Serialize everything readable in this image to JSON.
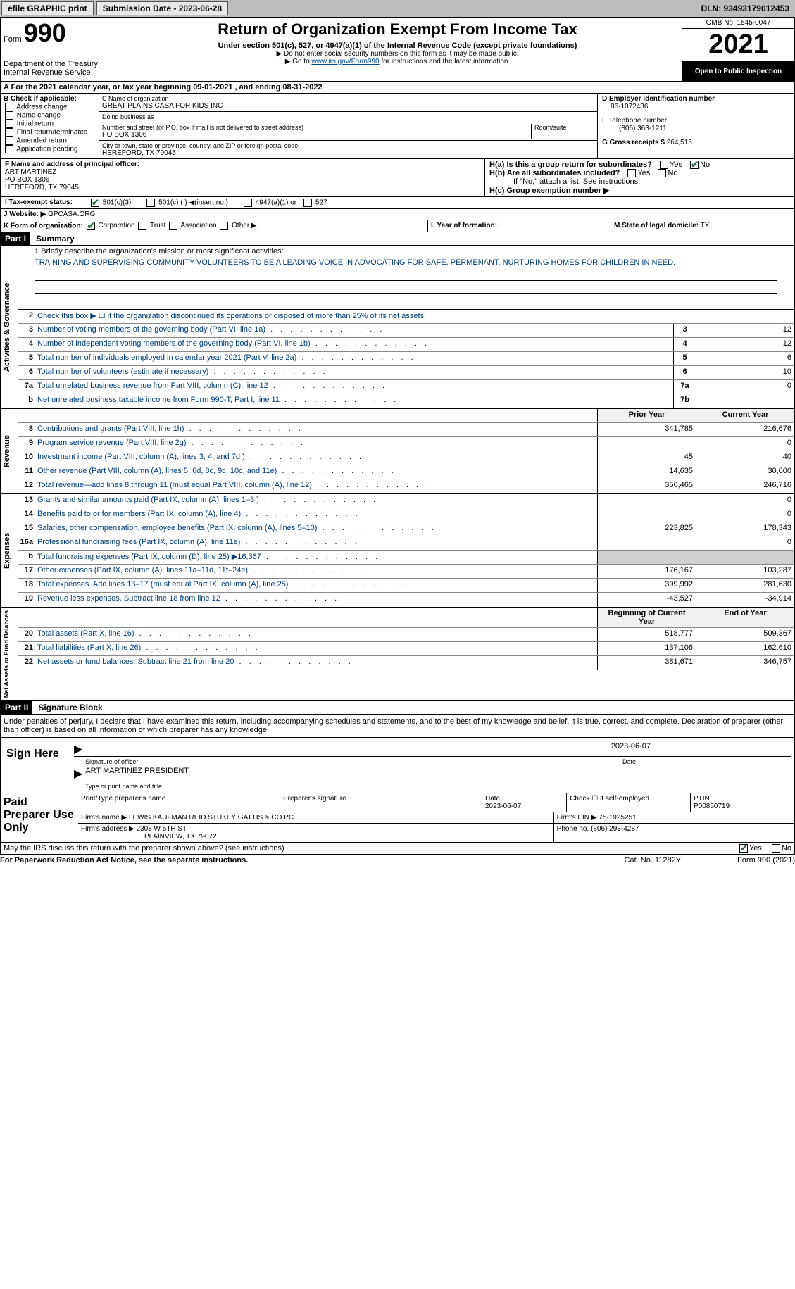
{
  "topbar": {
    "efile": "efile GRAPHIC print",
    "sub_label": "Submission Date - 2023-06-28",
    "dln": "DLN: 93493179012453"
  },
  "header": {
    "form": "Form",
    "num": "990",
    "title": "Return of Organization Exempt From Income Tax",
    "sub1": "Under section 501(c), 527, or 4947(a)(1) of the Internal Revenue Code (except private foundations)",
    "sub2": "▶ Do not enter social security numbers on this form as it may be made public.",
    "sub3_a": "▶ Go to ",
    "sub3_link": "www.irs.gov/Form990",
    "sub3_b": " for instructions and the latest information.",
    "dept": "Department of the Treasury",
    "irs": "Internal Revenue Service",
    "omb": "OMB No. 1545-0047",
    "year": "2021",
    "pub": "Open to Public Inspection"
  },
  "sectionA": "A For the 2021 calendar year, or tax year beginning 09-01-2021   , and ending 08-31-2022",
  "B": {
    "lbl": "B Check if applicable:",
    "opts": [
      "Address change",
      "Name change",
      "Initial return",
      "Final return/terminated",
      "Amended return",
      "Application pending"
    ]
  },
  "C": {
    "name_lbl": "C Name of organization",
    "name": "GREAT PLAINS CASA FOR KIDS INC",
    "dba_lbl": "Doing business as",
    "dba": "",
    "addr_lbl": "Number and street (or P.O. box if mail is not delivered to street address)",
    "room_lbl": "Room/suite",
    "addr": "PO BOX 1306",
    "city_lbl": "City or town, state or province, country, and ZIP or foreign postal code",
    "city": "HEREFORD, TX  79045"
  },
  "D": {
    "lbl": "D Employer identification number",
    "val": "86-1072436"
  },
  "E": {
    "lbl": "E Telephone number",
    "val": "(806) 363-1211"
  },
  "G": {
    "lbl": "G Gross receipts $",
    "val": "264,515"
  },
  "F": {
    "lbl": "F  Name and address of principal officer:",
    "name": "ART MARTINEZ",
    "addr1": "PO BOX 1306",
    "addr2": "HEREFORD, TX  79045"
  },
  "H": {
    "a": "H(a)  Is this a group return for subordinates?",
    "b": "H(b)  Are all subordinates included?",
    "b_note": "If \"No,\" attach a list. See instructions.",
    "c": "H(c)  Group exemption number ▶",
    "yes": "Yes",
    "no": "No"
  },
  "I": {
    "lbl": "I  Tax-exempt status:",
    "opt1": "501(c)(3)",
    "opt2": "501(c) (  ) ◀(insert no.)",
    "opt3": "4947(a)(1) or",
    "opt4": "527"
  },
  "J": {
    "lbl": "J  Website: ▶",
    "val": "GPCASA.ORG"
  },
  "K": {
    "lbl": "K Form of organization:",
    "corp": "Corporation",
    "trust": "Trust",
    "assoc": "Association",
    "other": "Other ▶"
  },
  "L": {
    "lbl": "L Year of formation:",
    "val": ""
  },
  "M": {
    "lbl": "M State of legal domicile:",
    "val": "TX"
  },
  "part1": {
    "head": "Part I",
    "title": "Summary"
  },
  "brief": {
    "n": "1",
    "lbl": "Briefly describe the organization's mission or most significant activities:",
    "txt": "TRAINING AND SUPERVISING COMMUNITY VOLUNTEERS TO BE A LEADING VOICE IN ADVOCATING FOR SAFE, PERMENANT, NURTURING HOMES FOR CHILDREN IN NEED."
  },
  "line2": {
    "n": "2",
    "txt": "Check this box ▶ ☐  if the organization discontinued its operations or disposed of more than 25% of its net assets."
  },
  "govlines": [
    {
      "n": "3",
      "d": "Number of voting members of the governing body (Part VI, line 1a)",
      "nb": "3",
      "v": "12"
    },
    {
      "n": "4",
      "d": "Number of independent voting members of the governing body (Part VI, line 1b)",
      "nb": "4",
      "v": "12"
    },
    {
      "n": "5",
      "d": "Total number of individuals employed in calendar year 2021 (Part V, line 2a)",
      "nb": "5",
      "v": "6"
    },
    {
      "n": "6",
      "d": "Total number of volunteers (estimate if necessary)",
      "nb": "6",
      "v": "10"
    },
    {
      "n": "7a",
      "d": "Total unrelated business revenue from Part VIII, column (C), line 12",
      "nb": "7a",
      "v": "0"
    },
    {
      "n": "b",
      "d": "Net unrelated business taxable income from Form 990-T, Part I, line 11",
      "nb": "7b",
      "v": ""
    }
  ],
  "revhead": {
    "pv": "Prior Year",
    "cv": "Current Year"
  },
  "revlines": [
    {
      "n": "8",
      "d": "Contributions and grants (Part VIII, line 1h)",
      "pv": "341,785",
      "cv": "216,676"
    },
    {
      "n": "9",
      "d": "Program service revenue (Part VIII, line 2g)",
      "pv": "",
      "cv": "0"
    },
    {
      "n": "10",
      "d": "Investment income (Part VIII, column (A), lines 3, 4, and 7d )",
      "pv": "45",
      "cv": "40"
    },
    {
      "n": "11",
      "d": "Other revenue (Part VIII, column (A), lines 5, 6d, 8c, 9c, 10c, and 11e)",
      "pv": "14,635",
      "cv": "30,000"
    },
    {
      "n": "12",
      "d": "Total revenue—add lines 8 through 11 (must equal Part VIII, column (A), line 12)",
      "pv": "356,465",
      "cv": "246,716"
    }
  ],
  "explines": [
    {
      "n": "13",
      "d": "Grants and similar amounts paid (Part IX, column (A), lines 1–3 )",
      "pv": "",
      "cv": "0"
    },
    {
      "n": "14",
      "d": "Benefits paid to or for members (Part IX, column (A), line 4)",
      "pv": "",
      "cv": "0"
    },
    {
      "n": "15",
      "d": "Salaries, other compensation, employee benefits (Part IX, column (A), lines 5–10)",
      "pv": "223,825",
      "cv": "178,343"
    },
    {
      "n": "16a",
      "d": "Professional fundraising fees (Part IX, column (A), line 11e)",
      "pv": "",
      "cv": "0"
    },
    {
      "n": "b",
      "d": "Total fundraising expenses (Part IX, column (D), line 25) ▶16,367",
      "pv": "grey",
      "cv": "grey"
    },
    {
      "n": "17",
      "d": "Other expenses (Part IX, column (A), lines 11a–11d, 11f–24e)",
      "pv": "176,167",
      "cv": "103,287"
    },
    {
      "n": "18",
      "d": "Total expenses. Add lines 13–17 (must equal Part IX, column (A), line 25)",
      "pv": "399,992",
      "cv": "281,630"
    },
    {
      "n": "19",
      "d": "Revenue less expenses. Subtract line 18 from line 12",
      "pv": "-43,527",
      "cv": "-34,914"
    }
  ],
  "nethead": {
    "pv": "Beginning of Current Year",
    "cv": "End of Year"
  },
  "netlines": [
    {
      "n": "20",
      "d": "Total assets (Part X, line 16)",
      "pv": "518,777",
      "cv": "509,367"
    },
    {
      "n": "21",
      "d": "Total liabilities (Part X, line 26)",
      "pv": "137,106",
      "cv": "162,610"
    },
    {
      "n": "22",
      "d": "Net assets or fund balances. Subtract line 21 from line 20",
      "pv": "381,671",
      "cv": "346,757"
    }
  ],
  "part2": {
    "head": "Part II",
    "title": "Signature Block"
  },
  "penalty": "Under penalties of perjury, I declare that I have examined this return, including accompanying schedules and statements, and to the best of my knowledge and belief, it is true, correct, and complete. Declaration of preparer (other than officer) is based on all information of which preparer has any knowledge.",
  "sign": {
    "lbl": "Sign Here",
    "date": "2023-06-07",
    "sig_lbl": "Signature of officer",
    "date_lbl": "Date",
    "name": "ART MARTINEZ  PRESIDENT",
    "name_lbl": "Type or print name and title"
  },
  "paid": {
    "lbl": "Paid Preparer Use Only",
    "h1": "Print/Type preparer's name",
    "h2": "Preparer's signature",
    "h3": "Date",
    "h3v": "2023-06-07",
    "h4": "Check ☐ if self-employed",
    "h5": "PTIN",
    "h5v": "P00850719",
    "firm_lbl": "Firm's name    ▶",
    "firm": "LEWIS KAUFMAN REID STUKEY GATTIS & CO PC",
    "ein_lbl": "Firm's EIN ▶",
    "ein": "75-1925251",
    "addr_lbl": "Firm's address ▶",
    "addr1": "2308 W 5TH ST",
    "addr2": "PLAINVIEW, TX  79072",
    "phone_lbl": "Phone no.",
    "phone": "(806) 293-4287"
  },
  "discuss": {
    "txt": "May the IRS discuss this return with the preparer shown above? (see instructions)",
    "yes": "Yes",
    "no": "No"
  },
  "footer": {
    "l": "For Paperwork Reduction Act Notice, see the separate instructions.",
    "m": "Cat. No. 11282Y",
    "r": "Form 990 (2021)"
  },
  "vtabs": {
    "gov": "Activities & Governance",
    "rev": "Revenue",
    "exp": "Expenses",
    "net": "Net Assets or Fund Balances"
  }
}
